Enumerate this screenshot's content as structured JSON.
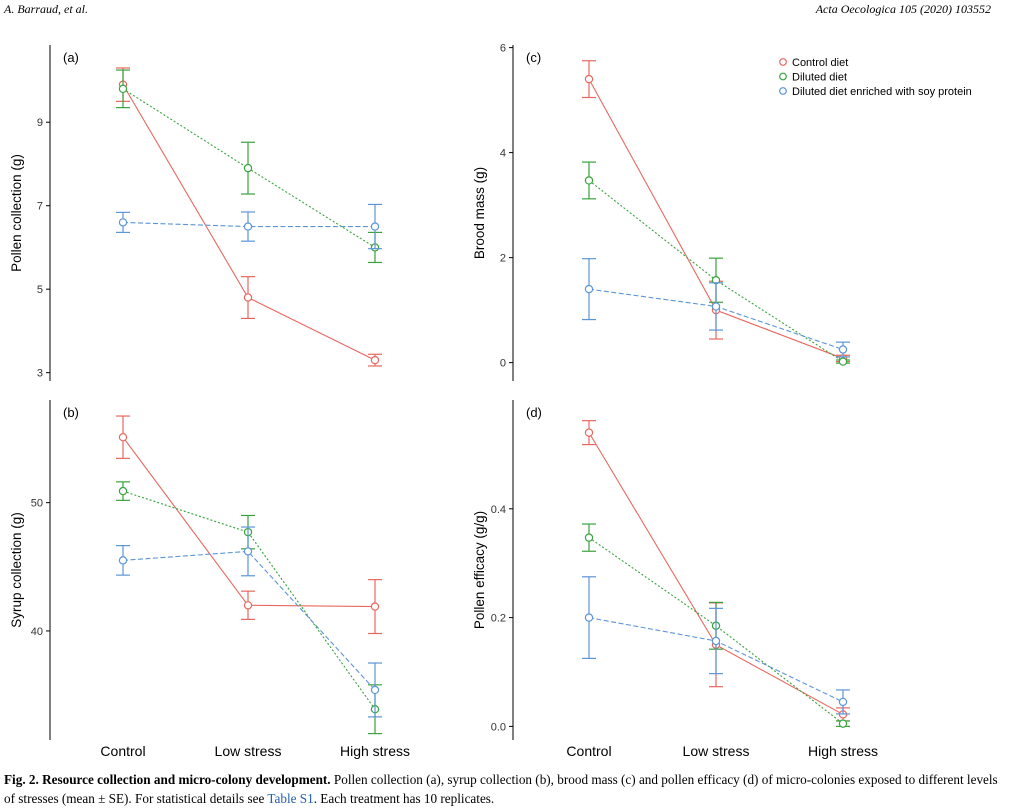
{
  "header": {
    "left": "A. Barraud, et al.",
    "right": "Acta Oecologica 105 (2020) 103552"
  },
  "legend": [
    {
      "name": "Control diet",
      "color": "#e8685f"
    },
    {
      "name": "Diluted diet",
      "color": "#37a33c"
    },
    {
      "name": "Diluted diet enriched with soy protein",
      "color": "#5b95d8"
    }
  ],
  "chart_data": [
    {
      "id": "a",
      "panel_label": "(a)",
      "type": "line",
      "ylabel": "Pollen collection (g)",
      "ylim": [
        2.8,
        10.85
      ],
      "yticks": [
        {
          "v": 3,
          "label": "3"
        },
        {
          "v": 5,
          "label": "5"
        },
        {
          "v": 7,
          "label": "7"
        },
        {
          "v": 9,
          "label": "9"
        }
      ],
      "categories": [
        "Control",
        "Low stress",
        "High stress"
      ],
      "show_xlabels": false,
      "series": [
        {
          "name": "Control diet",
          "values": [
            9.9,
            4.8,
            3.3
          ],
          "se": [
            0.4,
            0.5,
            0.14
          ]
        },
        {
          "name": "Diluted diet",
          "values": [
            9.8,
            7.9,
            6.0
          ],
          "se": [
            0.45,
            0.62,
            0.36
          ]
        },
        {
          "name": "Diluted diet enriched with soy protein",
          "values": [
            6.6,
            6.5,
            6.5
          ],
          "se": [
            0.24,
            0.35,
            0.53
          ]
        }
      ]
    },
    {
      "id": "b",
      "panel_label": "(b)",
      "type": "line",
      "ylabel": "Syrup collection (g)",
      "ylim": [
        31.5,
        58
      ],
      "yticks": [
        {
          "v": 40,
          "label": "40"
        },
        {
          "v": 50,
          "label": "50"
        }
      ],
      "categories": [
        "Control",
        "Low stress",
        "High stress"
      ],
      "show_xlabels": true,
      "series": [
        {
          "name": "Control diet",
          "values": [
            55.1,
            42.0,
            41.9
          ],
          "se": [
            1.65,
            1.1,
            2.1
          ]
        },
        {
          "name": "Diluted diet",
          "values": [
            50.9,
            47.7,
            33.9
          ],
          "se": [
            0.72,
            1.3,
            1.9
          ]
        },
        {
          "name": "Diluted diet enriched with soy protein",
          "values": [
            45.5,
            46.2,
            35.4
          ],
          "se": [
            1.15,
            1.9,
            2.1
          ]
        }
      ]
    },
    {
      "id": "c",
      "panel_label": "(c)",
      "type": "line",
      "ylabel": "Brood mass (g)",
      "ylim": [
        -0.35,
        6.05
      ],
      "yticks": [
        {
          "v": 0,
          "label": "0"
        },
        {
          "v": 2,
          "label": "2"
        },
        {
          "v": 4,
          "label": "4"
        },
        {
          "v": 6,
          "label": "6"
        }
      ],
      "categories": [
        "Control",
        "Low stress",
        "High stress"
      ],
      "show_xlabels": false,
      "series": [
        {
          "name": "Control diet",
          "values": [
            5.4,
            1.0,
            0.08
          ],
          "se": [
            0.35,
            0.55,
            0.06
          ]
        },
        {
          "name": "Diluted diet",
          "values": [
            3.47,
            1.57,
            0.02
          ],
          "se": [
            0.35,
            0.42,
            0.03
          ]
        },
        {
          "name": "Diluted diet enriched with soy protein",
          "values": [
            1.4,
            1.07,
            0.25
          ],
          "se": [
            0.58,
            0.45,
            0.14
          ]
        }
      ]
    },
    {
      "id": "d",
      "panel_label": "(d)",
      "type": "line",
      "ylabel": "Pollen efficacy (g/g)",
      "ylim": [
        -0.025,
        0.6
      ],
      "yticks": [
        {
          "v": 0.0,
          "label": "0.0"
        },
        {
          "v": 0.2,
          "label": "0.2"
        },
        {
          "v": 0.4,
          "label": "0.4"
        }
      ],
      "categories": [
        "Control",
        "Low stress",
        "High stress"
      ],
      "show_xlabels": true,
      "series": [
        {
          "name": "Control diet",
          "values": [
            0.54,
            0.15,
            0.022
          ],
          "se": [
            0.022,
            0.077,
            0.012
          ]
        },
        {
          "name": "Diluted diet",
          "values": [
            0.347,
            0.185,
            0.005
          ],
          "se": [
            0.025,
            0.043,
            0.005
          ]
        },
        {
          "name": "Diluted diet enriched with soy protein",
          "values": [
            0.2,
            0.157,
            0.045
          ],
          "se": [
            0.075,
            0.06,
            0.022
          ]
        }
      ]
    }
  ],
  "caption": {
    "label": "Fig. 2. Resource collection and micro-colony development.",
    "text_before_link": " Pollen collection (a), syrup collection (b), brood mass (c) and pollen efficacy (d) of micro-colonies exposed to different levels of stresses (mean ± SE). For statistical details see ",
    "link": "Table S1",
    "text_after_link": ". Each treatment has 10 replicates."
  }
}
